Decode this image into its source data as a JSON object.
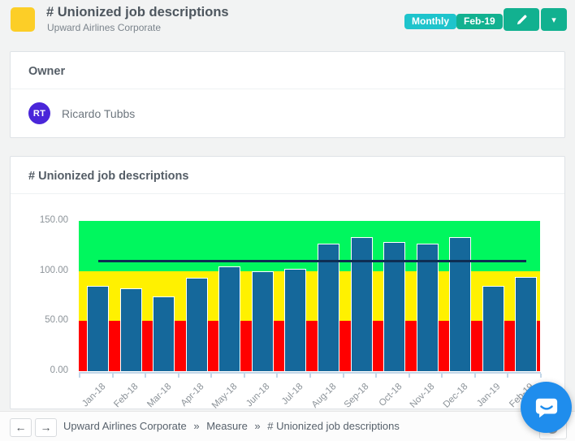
{
  "header": {
    "title": "# Unionized job descriptions",
    "subtitle": "Upward Airlines Corporate",
    "icon_color": "#fcce27",
    "badges": {
      "frequency": "Monthly",
      "period": "Feb-19"
    },
    "colors": {
      "frequency_badge": "#1ec4cc",
      "period_badge": "#12b190",
      "edit_button": "#12b190"
    },
    "edit_caret_icon": "▾"
  },
  "owner": {
    "heading": "Owner",
    "initials": "RT",
    "name": "Ricardo Tubbs",
    "avatar_color": "#4a26d9"
  },
  "chart_card": {
    "heading": "# Unionized job descriptions"
  },
  "chart_data": {
    "type": "bar",
    "title": "# Unionized job descriptions",
    "categories": [
      "Jan-18",
      "Feb-18",
      "Mar-18",
      "Apr-18",
      "May-18",
      "Jun-18",
      "Jul-18",
      "Aug-18",
      "Sep-18",
      "Oct-18",
      "Nov-18",
      "Dec-18",
      "Jan-19",
      "Feb-19"
    ],
    "values": [
      85,
      83,
      75,
      93,
      105,
      100,
      102,
      127,
      134,
      129,
      127,
      134,
      85,
      94
    ],
    "target_line": 110,
    "ylim": [
      0,
      150
    ],
    "yticks": [
      "150.00",
      "100.00",
      "50.00",
      "0.00"
    ],
    "bands": [
      {
        "name": "red",
        "from": 0,
        "to": 50,
        "color": "#ff0000"
      },
      {
        "name": "yellow",
        "from": 50,
        "to": 100,
        "color": "#fff100"
      },
      {
        "name": "green",
        "from": 100,
        "to": 150,
        "color": "#00f75e"
      }
    ],
    "bar_color": "#15689b",
    "line_color": "#0e2d52",
    "axis_color": "#c2d6e8",
    "grid": false,
    "legend": false
  },
  "footer": {
    "back_icon": "←",
    "forward_icon": "→",
    "breadcrumb": [
      "Upward Airlines Corporate",
      "Measure",
      "# Unionized job descriptions"
    ],
    "separator": "»"
  },
  "chat": {
    "color": "#1f8ded"
  }
}
